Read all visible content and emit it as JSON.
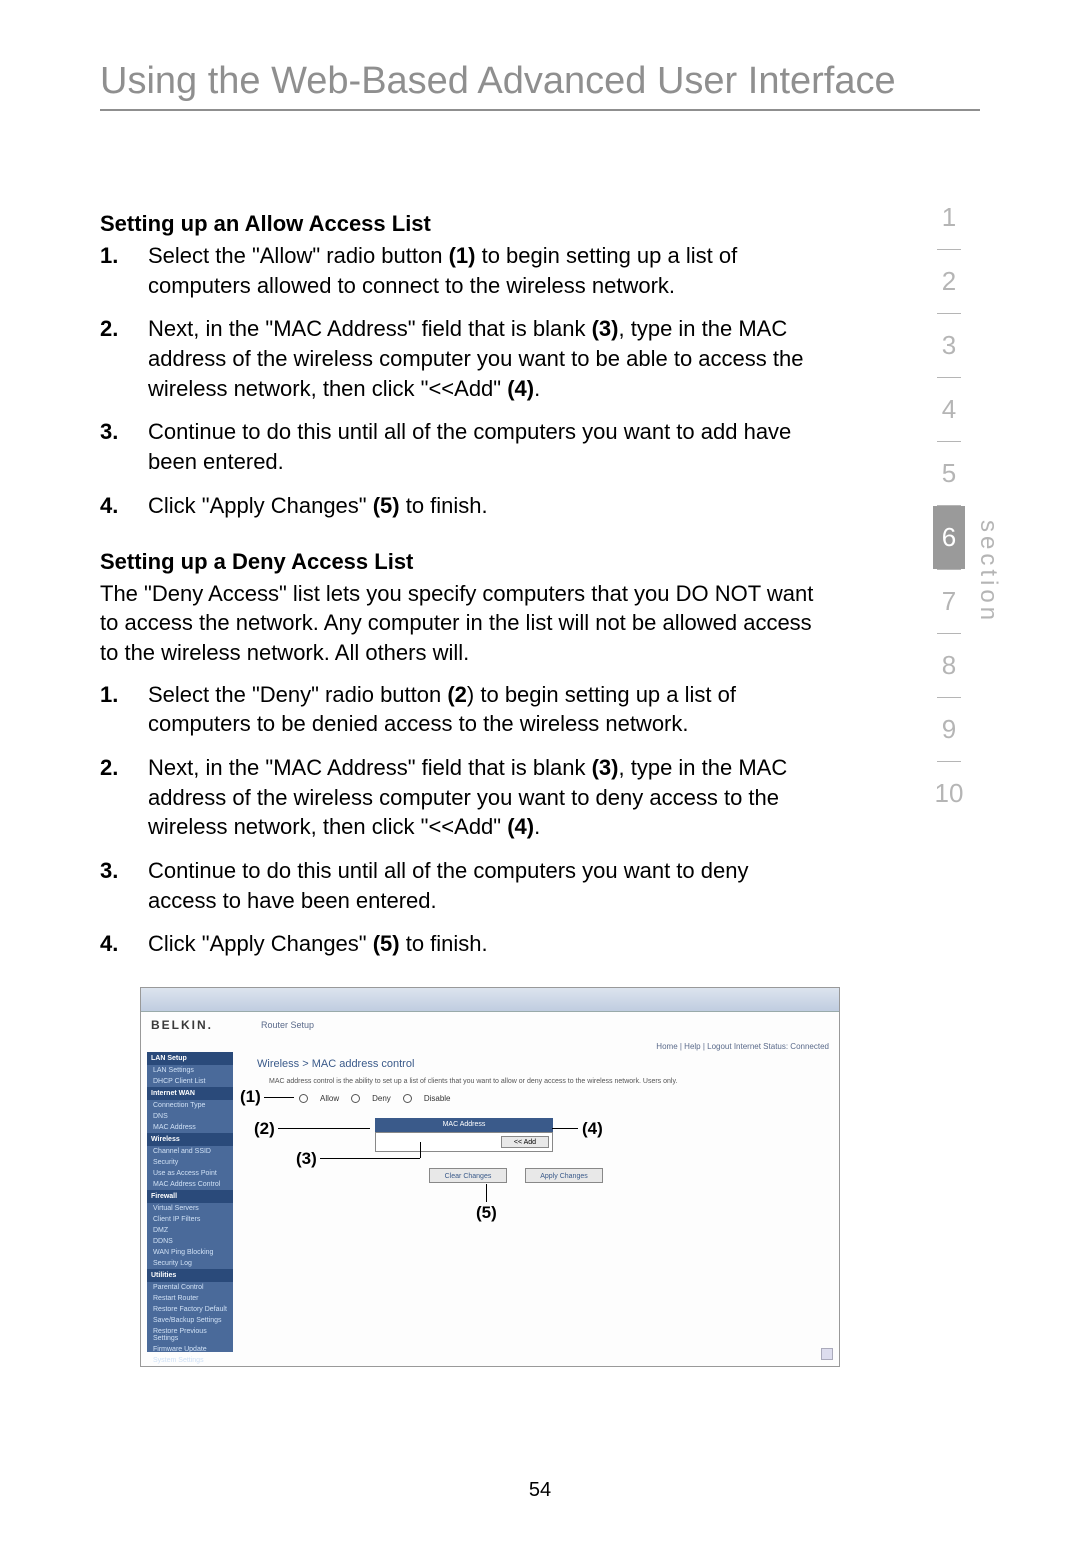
{
  "page": {
    "title": "Using the Web-Based Advanced User Interface",
    "number": "54"
  },
  "allow": {
    "heading": "Setting up an Allow Access List",
    "steps": [
      {
        "n": "1.",
        "pre": "Select the \"Allow\" radio button ",
        "b": "(1)",
        "post": " to begin setting up a list of computers allowed to connect to the wireless network."
      },
      {
        "n": "2.",
        "pre": "Next, in the \"MAC Address\" field that is blank ",
        "b": "(3)",
        "mid": ", type in the MAC address of the wireless computer you want to be able to access the wireless network, then click \"<<Add\" ",
        "b2": "(4)",
        "post2": "."
      },
      {
        "n": "3.",
        "pre": "Continue to do this until all of the computers you want to add have been entered."
      },
      {
        "n": "4.",
        "pre": "Click \"Apply Changes\" ",
        "b": "(5)",
        "post": " to finish."
      }
    ]
  },
  "deny": {
    "heading": "Setting up a Deny Access List",
    "intro": "The \"Deny Access\" list lets you specify computers that you DO NOT want to access the network. Any computer in the list will not be allowed access to the wireless network. All others will.",
    "steps": [
      {
        "n": "1.",
        "pre": "Select the \"Deny\" radio button ",
        "b": "(2",
        "post": ") to begin setting up a list of computers to be denied access to the wireless network."
      },
      {
        "n": "2.",
        "pre": "Next, in the \"MAC Address\" field that is blank ",
        "b": "(3)",
        "mid": ", type in the MAC address of the wireless computer you want to deny access to the wireless network, then click \"<<Add\" ",
        "b2": "(4)",
        "post2": "."
      },
      {
        "n": "3.",
        "pre": "Continue to do this until all of the computers you want to deny access to have been entered."
      },
      {
        "n": "4.",
        "pre": "Click \"Apply Changes\" ",
        "b": "(5)",
        "post": " to finish."
      }
    ]
  },
  "nav": {
    "sections": [
      "1",
      "2",
      "3",
      "4",
      "5",
      "6",
      "7",
      "8",
      "9",
      "10"
    ],
    "active_index": 5,
    "label": "section"
  },
  "shot": {
    "brand": "BELKIN.",
    "subtitle": "Router Setup",
    "toplinks": "Home | Help | Logout    Internet Status: Connected",
    "main_title": "Wireless > MAC address control",
    "desc": "MAC address control is the ability to set up a list of clients that you want to allow or deny access to the wireless network. Users only.",
    "radios": {
      "allow": "Allow",
      "deny": "Deny",
      "disable": "Disable"
    },
    "macbar": "MAC Address",
    "addbtn": "<< Add",
    "clear": "Clear Changes",
    "apply": "Apply Changes",
    "sidebar": {
      "groups": [
        {
          "hdr": "LAN Setup",
          "items": [
            "LAN Settings",
            "DHCP Client List"
          ]
        },
        {
          "hdr": "Internet WAN",
          "items": [
            "Connection Type",
            "DNS",
            "MAC Address"
          ]
        },
        {
          "hdr": "Wireless",
          "items": [
            "Channel and SSID",
            "Security",
            "Use as Access Point",
            "MAC Address Control"
          ]
        },
        {
          "hdr": "Firewall",
          "items": [
            "Virtual Servers",
            "Client IP Filters",
            "DMZ",
            "DDNS",
            "WAN Ping Blocking",
            "Security Log"
          ]
        },
        {
          "hdr": "Utilities",
          "items": [
            "Parental Control",
            "Restart Router",
            "Restore Factory Default",
            "Save/Backup Settings",
            "Restore Previous Settings",
            "Firmware Update",
            "System Settings"
          ]
        }
      ]
    }
  },
  "callouts": {
    "c1": "(1)",
    "c2": "(2)",
    "c3": "(3)",
    "c4": "(4)",
    "c5": "(5)"
  }
}
